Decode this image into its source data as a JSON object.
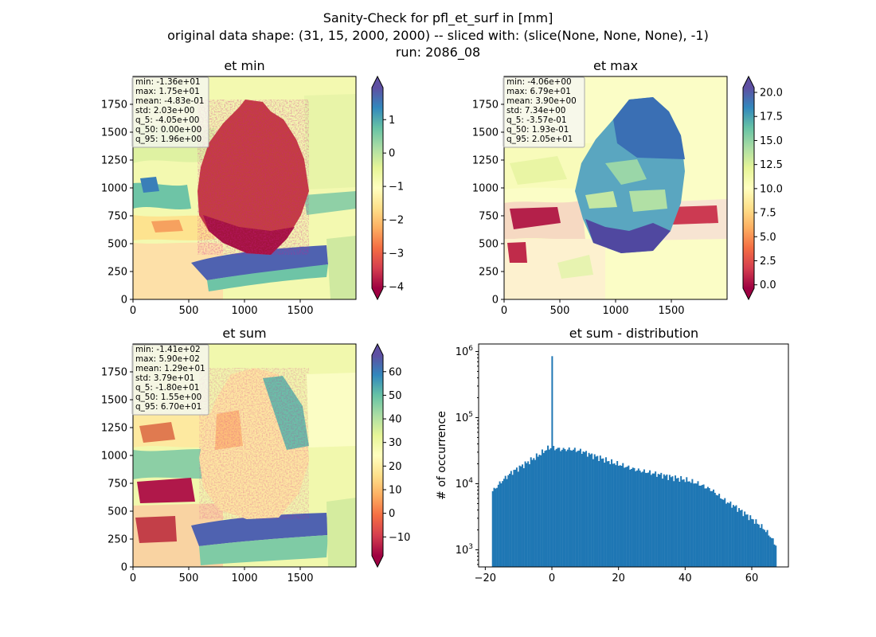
{
  "suptitle": {
    "line1": "Sanity-Check for pfl_et_surf in [mm]",
    "line2": "original data shape: (31, 15, 2000, 2000) -- sliced with: (slice(None, None, None), -1)",
    "line3": "run: 2086_08"
  },
  "chart_data": [
    {
      "type": "heatmap",
      "title": "et min",
      "xticks": [
        0,
        500,
        1000,
        1500
      ],
      "yticks": [
        0,
        250,
        500,
        750,
        1000,
        1250,
        1500,
        1750
      ],
      "xlim": [
        0,
        2000
      ],
      "ylim": [
        0,
        2000
      ],
      "colorbar": {
        "cmap": "Spectral",
        "range": [
          -4.05,
          1.96
        ],
        "ticks": [
          -4,
          -3,
          -2,
          -1,
          0,
          1
        ],
        "tick_labels": [
          "−4",
          "−3",
          "−2",
          "−1",
          "0",
          "1"
        ]
      },
      "stats": [
        "min: -1.36e+01",
        "max: 1.75e+01",
        "mean: -4.83e-01",
        "std: 2.03e+00",
        "q_5: -4.05e+00",
        "q_50: 0.00e+00",
        "q_95: 1.96e+00"
      ]
    },
    {
      "type": "heatmap",
      "title": "et max",
      "xticks": [
        0,
        500,
        1000,
        1500
      ],
      "yticks": [
        0,
        250,
        500,
        750,
        1000,
        1250,
        1500,
        1750
      ],
      "xlim": [
        0,
        2000
      ],
      "ylim": [
        0,
        2000
      ],
      "colorbar": {
        "cmap": "Spectral",
        "range": [
          -0.357,
          20.5
        ],
        "ticks": [
          0,
          2.5,
          5,
          7.5,
          10,
          12.5,
          15,
          17.5,
          20
        ],
        "tick_labels": [
          "0.0",
          "2.5",
          "5.0",
          "7.5",
          "10.0",
          "12.5",
          "15.0",
          "17.5",
          "20.0"
        ]
      },
      "stats": [
        "min: -4.06e+00",
        "max: 6.79e+01",
        "mean: 3.90e+00",
        "std: 7.34e+00",
        "q_5: -3.57e-01",
        "q_50: 1.93e-01",
        "q_95: 2.05e+01"
      ]
    },
    {
      "type": "heatmap",
      "title": "et sum",
      "xticks": [
        0,
        500,
        1000,
        1500
      ],
      "yticks": [
        0,
        250,
        500,
        750,
        1000,
        1250,
        1500,
        1750
      ],
      "xlim": [
        0,
        2000
      ],
      "ylim": [
        0,
        2000
      ],
      "colorbar": {
        "cmap": "Spectral",
        "range": [
          -18.0,
          67.0
        ],
        "ticks": [
          -10,
          0,
          10,
          20,
          30,
          40,
          50,
          60
        ],
        "tick_labels": [
          "−10",
          "0",
          "10",
          "20",
          "30",
          "40",
          "50",
          "60"
        ]
      },
      "stats": [
        "min: -1.41e+02",
        "max: 5.90e+02",
        "mean: 1.29e+01",
        "std: 3.79e+01",
        "q_5: -1.80e+01",
        "q_50: 1.55e+00",
        "q_95: 6.70e+01"
      ]
    },
    {
      "type": "bar",
      "title": "et sum - distribution",
      "ylabel": "# of occurrence",
      "xlabel": "",
      "yscale": "log",
      "xlim": [
        -22,
        71
      ],
      "ylim": [
        550,
        1300000
      ],
      "xticks": [
        -20,
        0,
        20,
        40,
        60
      ],
      "xtick_labels": [
        "−20",
        "0",
        "20",
        "40",
        "60"
      ],
      "yticks": [
        1000,
        10000,
        100000,
        1000000
      ],
      "ytick_labels": [
        "10^3",
        "10^4",
        "10^5",
        "10^6"
      ],
      "color": "#1f77b4",
      "bins": {
        "start": -18.0,
        "width": 0.425
      },
      "anchors": [
        [
          -18,
          7500
        ],
        [
          -15,
          11000
        ],
        [
          -12,
          15000
        ],
        [
          -8,
          20000
        ],
        [
          -4,
          27000
        ],
        [
          -1,
          35000
        ],
        [
          0,
          35000
        ],
        [
          3,
          33000
        ],
        [
          6,
          33000
        ],
        [
          9,
          31000
        ],
        [
          12,
          27000
        ],
        [
          15,
          24000
        ],
        [
          18,
          21000
        ],
        [
          21,
          19000
        ],
        [
          24,
          17000
        ],
        [
          27,
          15500
        ],
        [
          30,
          14500
        ],
        [
          33,
          13500
        ],
        [
          36,
          12500
        ],
        [
          40,
          11500
        ],
        [
          44,
          10000
        ],
        [
          48,
          8000
        ],
        [
          52,
          5500
        ],
        [
          55,
          4500
        ],
        [
          58,
          3500
        ],
        [
          61,
          2700
        ],
        [
          64,
          2000
        ],
        [
          66,
          1500
        ],
        [
          67,
          1200
        ]
      ],
      "spike": {
        "x": 0,
        "value": 850000
      }
    }
  ]
}
